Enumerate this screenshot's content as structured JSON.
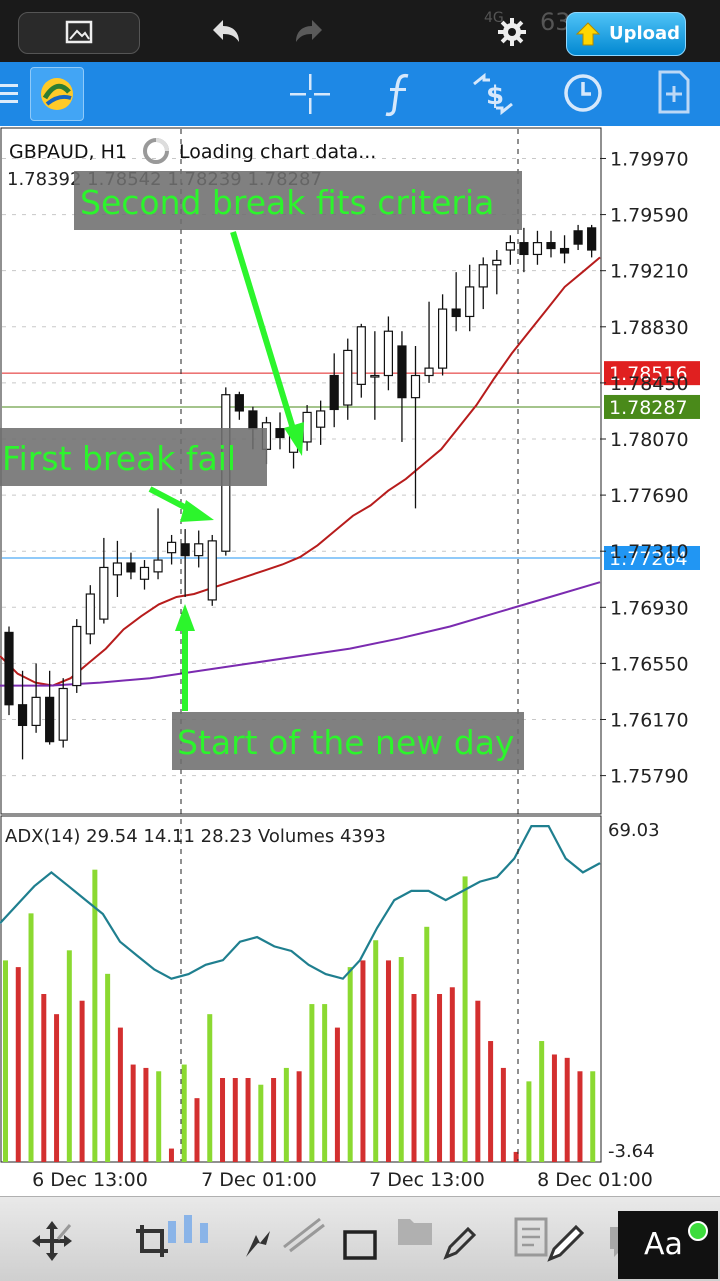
{
  "status_bar": {
    "network": "4G",
    "battery_text": "63",
    "upload_label": "Upload"
  },
  "toolbar": {
    "icons": [
      "menu-icon",
      "metatrader-logo-icon",
      "crosshair-icon",
      "indicator-f-icon",
      "trade-dollar-icon",
      "clock-icon",
      "new-document-icon"
    ]
  },
  "chart_data": {
    "type": "candlestick",
    "symbol_label": "GBPAUD, H1",
    "loading_text": "Loading chart data...",
    "ohlc_line": "1.78392 1.78542 1.78239 1.78287",
    "y_ticks": [
      "1.79970",
      "1.79590",
      "1.79210",
      "1.78830",
      "1.78450",
      "1.78070",
      "1.77690",
      "1.77310",
      "1.76930",
      "1.76550",
      "1.76170",
      "1.75790"
    ],
    "y_range": [
      1.7553,
      1.8019
    ],
    "price_lines": [
      {
        "value": 1.78516,
        "label": "1.78516",
        "color": "#e02020"
      },
      {
        "value": 1.78287,
        "label": "1.78287",
        "color": "#4a8a1a"
      },
      {
        "value": 1.77264,
        "label": "1.77264",
        "color": "#2196f3"
      }
    ],
    "candles": [
      [
        1.7676,
        1.768,
        1.762,
        1.7627
      ],
      [
        1.7627,
        1.765,
        1.759,
        1.7613
      ],
      [
        1.7613,
        1.7655,
        1.7608,
        1.7632
      ],
      [
        1.7632,
        1.765,
        1.76,
        1.7602
      ],
      [
        1.7603,
        1.7645,
        1.7598,
        1.7638
      ],
      [
        1.764,
        1.7685,
        1.7635,
        1.768
      ],
      [
        1.7675,
        1.7708,
        1.7668,
        1.7702
      ],
      [
        1.7685,
        1.774,
        1.7682,
        1.772
      ],
      [
        1.7715,
        1.7738,
        1.77,
        1.7723
      ],
      [
        1.7723,
        1.773,
        1.7712,
        1.7717
      ],
      [
        1.7712,
        1.7725,
        1.7705,
        1.772
      ],
      [
        1.7717,
        1.776,
        1.7712,
        1.7725
      ],
      [
        1.773,
        1.7742,
        1.7722,
        1.7737
      ],
      [
        1.7736,
        1.7746,
        1.77,
        1.7728
      ],
      [
        1.7728,
        1.7745,
        1.772,
        1.7736
      ],
      [
        1.7698,
        1.7742,
        1.7694,
        1.7738
      ],
      [
        1.7731,
        1.7842,
        1.7728,
        1.7837
      ],
      [
        1.7837,
        1.7839,
        1.782,
        1.7826
      ],
      [
        1.7826,
        1.7829,
        1.78,
        1.7814
      ],
      [
        1.78,
        1.7822,
        1.779,
        1.7818
      ],
      [
        1.7814,
        1.7825,
        1.78,
        1.7808
      ],
      [
        1.7798,
        1.7815,
        1.7787,
        1.7812
      ],
      [
        1.7805,
        1.783,
        1.7799,
        1.7825
      ],
      [
        1.7815,
        1.7833,
        1.7803,
        1.7826
      ],
      [
        1.785,
        1.7865,
        1.7815,
        1.7827
      ],
      [
        1.783,
        1.7875,
        1.782,
        1.7867
      ],
      [
        1.7844,
        1.7885,
        1.7835,
        1.7883
      ],
      [
        1.785,
        1.788,
        1.782,
        1.785
      ],
      [
        1.785,
        1.789,
        1.784,
        1.788
      ],
      [
        1.787,
        1.788,
        1.7805,
        1.7835
      ],
      [
        1.7835,
        1.787,
        1.776,
        1.785
      ],
      [
        1.785,
        1.79,
        1.7845,
        1.7855
      ],
      [
        1.7855,
        1.7905,
        1.785,
        1.7895
      ],
      [
        1.7895,
        1.792,
        1.788,
        1.789
      ],
      [
        1.789,
        1.7925,
        1.788,
        1.791
      ],
      [
        1.791,
        1.793,
        1.7895,
        1.7925
      ],
      [
        1.7925,
        1.7935,
        1.7905,
        1.7928
      ],
      [
        1.7935,
        1.7945,
        1.7925,
        1.794
      ],
      [
        1.794,
        1.795,
        1.792,
        1.7932
      ],
      [
        1.7932,
        1.7948,
        1.7925,
        1.794
      ],
      [
        1.794,
        1.7948,
        1.793,
        1.7936
      ],
      [
        1.7936,
        1.7945,
        1.7926,
        1.7933
      ],
      [
        1.7948,
        1.7952,
        1.7935,
        1.7939
      ],
      [
        1.795,
        1.7952,
        1.793,
        1.7935
      ]
    ],
    "ma_red": [
      1.766,
      1.7648,
      1.7642,
      1.764,
      1.7645,
      1.7655,
      1.7665,
      1.7678,
      1.7687,
      1.7695,
      1.77,
      1.7702,
      1.7706,
      1.771,
      1.7714,
      1.7718,
      1.7722,
      1.7727,
      1.7735,
      1.7745,
      1.7755,
      1.7762,
      1.7772,
      1.778,
      1.779,
      1.78,
      1.7815,
      1.783,
      1.7848,
      1.7865,
      1.788,
      1.7895,
      1.791,
      1.792,
      1.793
    ],
    "ma_purple": [
      1.764,
      1.764,
      1.7642,
      1.7645,
      1.765,
      1.7655,
      1.766,
      1.7665,
      1.7672,
      1.768,
      1.769,
      1.77,
      1.771
    ],
    "x_labels": [
      "6 Dec 13:00",
      "7 Dec 01:00",
      "7 Dec 13:00",
      "8 Dec 01:00"
    ],
    "annotations": [
      {
        "text": "Second break fits criteria"
      },
      {
        "text": "First break fail"
      },
      {
        "text": "Start of the new day"
      }
    ],
    "adx_panel": {
      "title": "ADX(14) 29.54 14.11 28.23 Volumes 4393",
      "y_max_label": "69.03",
      "y_min_label": "-3.64",
      "y_range": [
        -3.64,
        69.03
      ],
      "volume_colors": [
        "#d32f2f",
        "#8bd931"
      ],
      "volumes": [
        [
          0.6,
          1
        ],
        [
          0.58,
          0
        ],
        [
          0.74,
          1
        ],
        [
          0.5,
          0
        ],
        [
          0.44,
          0
        ],
        [
          0.63,
          1
        ],
        [
          0.48,
          0
        ],
        [
          0.87,
          1
        ],
        [
          0.56,
          1
        ],
        [
          0.4,
          0
        ],
        [
          0.29,
          0
        ],
        [
          0.28,
          0
        ],
        [
          0.27,
          1
        ],
        [
          0.04,
          0
        ],
        [
          0.29,
          1
        ],
        [
          0.19,
          0
        ],
        [
          0.44,
          1
        ],
        [
          0.25,
          0
        ],
        [
          0.25,
          0
        ],
        [
          0.25,
          0
        ],
        [
          0.23,
          1
        ],
        [
          0.25,
          0
        ],
        [
          0.28,
          1
        ],
        [
          0.27,
          0
        ],
        [
          0.47,
          1
        ],
        [
          0.47,
          1
        ],
        [
          0.4,
          0
        ],
        [
          0.58,
          1
        ],
        [
          0.6,
          0
        ],
        [
          0.66,
          1
        ],
        [
          0.6,
          0
        ],
        [
          0.61,
          1
        ],
        [
          0.5,
          0
        ],
        [
          0.7,
          1
        ],
        [
          0.5,
          0
        ],
        [
          0.52,
          0
        ],
        [
          0.85,
          1
        ],
        [
          0.48,
          0
        ],
        [
          0.36,
          0
        ],
        [
          0.28,
          0
        ],
        [
          0.03,
          0
        ],
        [
          0.24,
          1
        ],
        [
          0.36,
          1
        ],
        [
          0.32,
          0
        ],
        [
          0.31,
          0
        ],
        [
          0.27,
          0
        ],
        [
          0.27,
          1
        ]
      ],
      "adx_line": [
        48,
        52,
        56,
        59,
        56,
        53,
        50,
        44,
        41,
        38,
        36,
        37,
        39,
        40,
        44,
        45,
        43,
        42,
        39,
        37,
        36,
        40,
        47,
        53,
        55,
        55,
        53,
        55,
        57,
        58,
        62,
        69,
        69,
        62,
        59,
        61
      ]
    }
  },
  "bottom_bar": {
    "icons": [
      "move-icon",
      "crop-icon",
      "candles-icon",
      "cursor-icon",
      "trendline-icon",
      "rectangle-icon",
      "folder-icon",
      "pencil-icon",
      "document-icon",
      "brush-icon",
      "chat-icon"
    ],
    "font_button_label": "Aa"
  }
}
